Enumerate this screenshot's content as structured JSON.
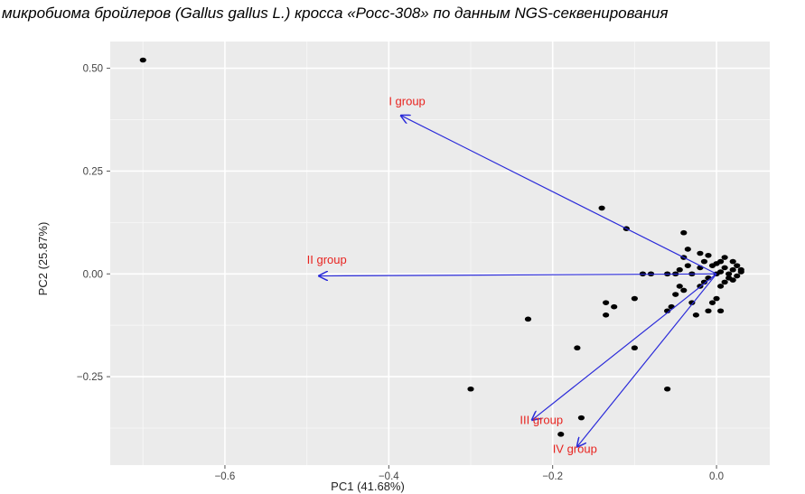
{
  "caption": "микробиома бройлеров (Gallus gallus L.) кросса «Росс-308» по данным NGS-секвенирования",
  "chart_data": {
    "type": "scatter",
    "xlabel": "PC1 (41.68%)",
    "ylabel": "PC2 (25.87%)",
    "xlim": [
      -0.74,
      0.065
    ],
    "ylim": [
      -0.465,
      0.565
    ],
    "x_ticks": [
      {
        "value": -0.6,
        "label": "−0.6"
      },
      {
        "value": -0.4,
        "label": "−0.4"
      },
      {
        "value": -0.2,
        "label": "−0.2"
      },
      {
        "value": 0.0,
        "label": "0.0"
      }
    ],
    "y_ticks": [
      {
        "value": 0.5,
        "label": "0.50"
      },
      {
        "value": 0.25,
        "label": "0.25"
      },
      {
        "value": 0.0,
        "label": "0.00"
      },
      {
        "value": -0.25,
        "label": "−0.25"
      }
    ],
    "grid": true,
    "background": "#ebebeb",
    "point_color": "#000000",
    "arrow_color": "#2b2bd9",
    "label_color": "#e8231f",
    "points": [
      [
        -0.7,
        0.52
      ],
      [
        -0.14,
        0.16
      ],
      [
        -0.11,
        0.11
      ],
      [
        -0.04,
        0.1
      ],
      [
        -0.23,
        -0.11
      ],
      [
        -0.3,
        -0.28
      ],
      [
        -0.06,
        -0.28
      ],
      [
        -0.17,
        -0.18
      ],
      [
        -0.1,
        -0.18
      ],
      [
        -0.19,
        -0.39
      ],
      [
        -0.165,
        -0.35
      ],
      [
        -0.135,
        -0.07
      ],
      [
        -0.125,
        -0.08
      ],
      [
        -0.135,
        -0.1
      ],
      [
        -0.1,
        -0.06
      ],
      [
        -0.09,
        0.0
      ],
      [
        -0.08,
        0.0
      ],
      [
        -0.06,
        0.0
      ],
      [
        -0.05,
        0.0
      ],
      [
        -0.04,
        0.04
      ],
      [
        -0.035,
        0.06
      ],
      [
        -0.02,
        0.05
      ],
      [
        -0.01,
        0.045
      ],
      [
        0.005,
        0.03
      ],
      [
        -0.045,
        -0.03
      ],
      [
        -0.04,
        -0.04
      ],
      [
        -0.055,
        -0.08
      ],
      [
        -0.06,
        -0.09
      ],
      [
        -0.05,
        -0.05
      ],
      [
        -0.02,
        -0.03
      ],
      [
        -0.015,
        -0.02
      ],
      [
        -0.03,
        -0.07
      ],
      [
        -0.025,
        -0.1
      ],
      [
        -0.005,
        -0.07
      ],
      [
        -0.01,
        -0.09
      ],
      [
        0.005,
        -0.09
      ],
      [
        0.0,
        -0.06
      ],
      [
        0.01,
        -0.02
      ],
      [
        0.015,
        0.0
      ],
      [
        0.02,
        0.01
      ],
      [
        0.025,
        0.02
      ],
      [
        0.03,
        0.01
      ],
      [
        0.01,
        0.04
      ],
      [
        -0.005,
        0.02
      ],
      [
        -0.02,
        0.015
      ],
      [
        -0.03,
        0.0
      ],
      [
        0.0,
        0.0
      ],
      [
        0.005,
        0.005
      ],
      [
        0.015,
        -0.01
      ],
      [
        0.02,
        -0.015
      ],
      [
        0.025,
        -0.005
      ],
      [
        0.01,
        0.015
      ],
      [
        0.0,
        0.025
      ],
      [
        -0.01,
        -0.01
      ],
      [
        0.03,
        0.005
      ],
      [
        -0.015,
        0.03
      ],
      [
        0.005,
        -0.03
      ],
      [
        -0.045,
        0.01
      ],
      [
        -0.035,
        0.02
      ],
      [
        0.02,
        0.03
      ]
    ],
    "arrows": [
      {
        "label": "I group",
        "x": -0.385,
        "y": 0.385,
        "label_x": -0.4,
        "label_y": 0.41
      },
      {
        "label": "II group",
        "x": -0.485,
        "y": -0.005,
        "label_x": -0.5,
        "label_y": 0.025
      },
      {
        "label": "III group",
        "x": -0.225,
        "y": -0.355,
        "label_x": -0.24,
        "label_y": -0.365
      },
      {
        "label": "IV group",
        "x": -0.17,
        "y": -0.42,
        "label_x": -0.2,
        "label_y": -0.435
      }
    ]
  }
}
